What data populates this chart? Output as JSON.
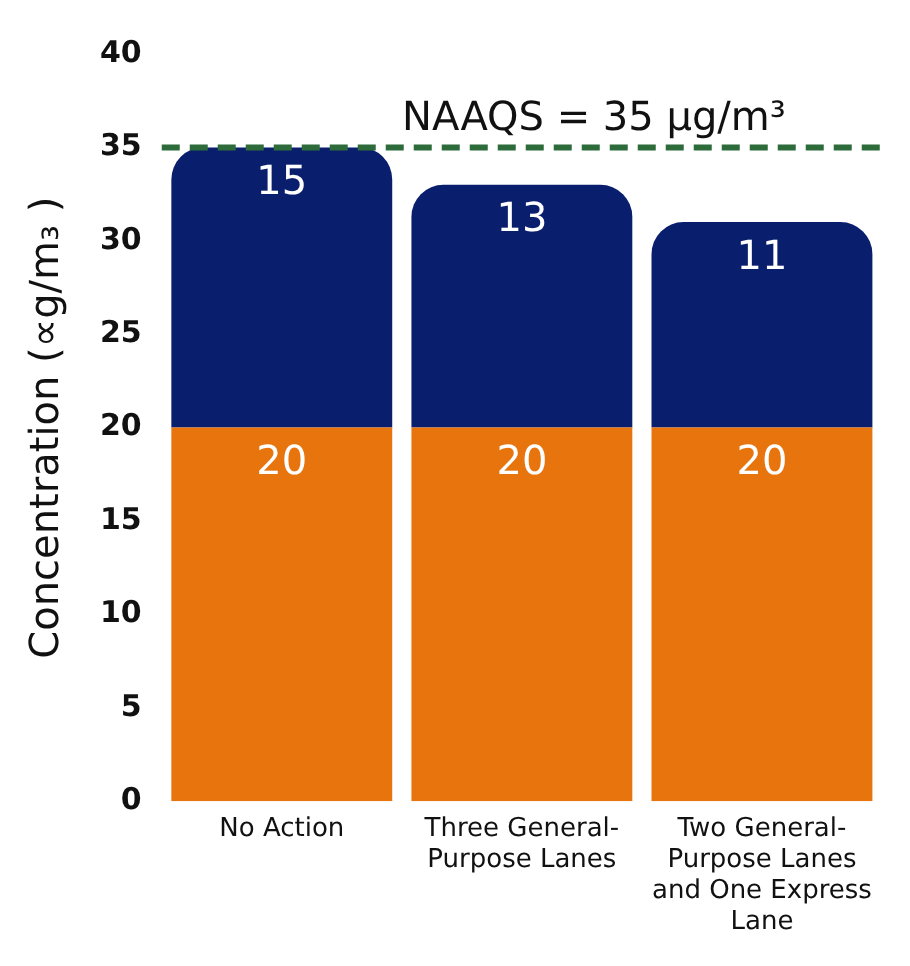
{
  "chart_data": {
    "type": "bar",
    "stacked": true,
    "ylabel": "Concentration (∝g/m₃ )",
    "categories": [
      "No Action",
      "Three General-Purpose Lanes",
      "Two General-Purpose Lanes and One Express Lane"
    ],
    "series": [
      {
        "color": "#e8740e",
        "values": [
          20,
          20,
          20
        ]
      },
      {
        "color": "#0a1e6e",
        "values": [
          15,
          13,
          11
        ]
      }
    ],
    "ylim": [
      0,
      40
    ],
    "yticks": [
      0,
      5,
      10,
      15,
      20,
      25,
      30,
      35,
      40
    ],
    "grid": false,
    "legend": false,
    "data_labels": true,
    "ref_lines": [
      {
        "axis": "y",
        "value": 35,
        "label": "NAAQS = 35 μg/m³",
        "color": "#2e6b3a",
        "line_style": "dashed"
      }
    ]
  }
}
